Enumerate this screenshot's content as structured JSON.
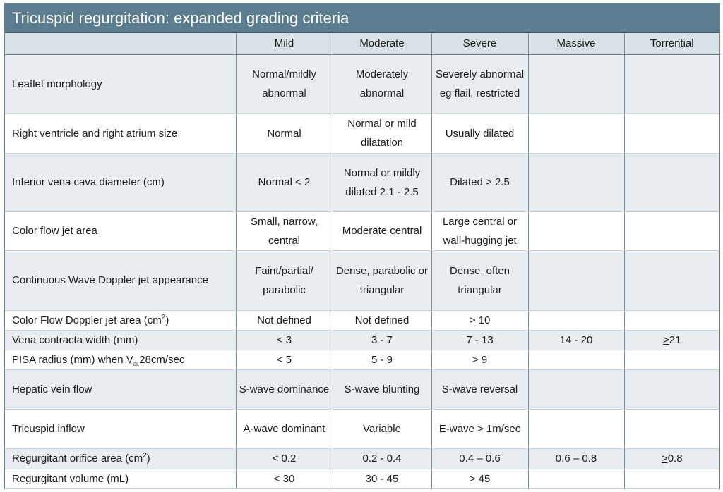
{
  "title": "Tricuspid regurgitation: expanded grading criteria",
  "columns": [
    "",
    "Mild",
    "Moderate",
    "Severe",
    "Massive",
    "Torrential"
  ],
  "rows": {
    "leaflet": {
      "label": "Leaflet morphology",
      "mild": "Normal/mildly abnormal",
      "moderate": "Moderately abnormal",
      "severe": "Severely abnormal eg flail, restricted",
      "massive": "",
      "torrential": ""
    },
    "rv_ra": {
      "label": "Right ventricle and right atrium size",
      "mild": "Normal",
      "moderate": "Normal or mild dilatation",
      "severe": "Usually dilated",
      "massive": "",
      "torrential": ""
    },
    "ivc": {
      "label": "Inferior vena cava diameter (cm)",
      "mild": "Normal < 2",
      "moderate": "Normal or mildly dilated 2.1 - 2.5",
      "severe": "Dilated > 2.5",
      "massive": "",
      "torrential": ""
    },
    "cfja": {
      "label": "Color flow jet area",
      "mild": "Small, narrow, central",
      "moderate": "Moderate central",
      "severe": "Large central or wall-hugging jet",
      "massive": "",
      "torrential": ""
    },
    "cw": {
      "label": "Continuous Wave Doppler jet appearance",
      "mild": "Faint/partial/ parabolic",
      "moderate": "Dense, parabolic or triangular",
      "severe": "Dense, often triangular",
      "massive": "",
      "torrential": ""
    },
    "cfdja": {
      "label_main": "Color Flow Doppler jet area (cm",
      "label_sup": "2",
      "label_end": ")",
      "mild": "Not defined",
      "moderate": "Not defined",
      "severe": "> 10",
      "massive": "",
      "torrential": ""
    },
    "vc": {
      "label": "Vena contracta width (mm)",
      "mild": "< 3",
      "moderate": "3 - 7",
      "severe": "7 - 13",
      "massive": "14 - 20",
      "torrential_under": ">",
      "torrential_rest": "21"
    },
    "pisa": {
      "label_main": "PISA radius (mm) when V",
      "label_sub": "al.",
      "label_end": "28cm/sec",
      "mild": "< 5",
      "moderate": "5 - 9",
      "severe": "> 9",
      "massive": "",
      "torrential": ""
    },
    "hepatic": {
      "label": "Hepatic vein flow",
      "mild": "S-wave dominance",
      "moderate": "S-wave blunting",
      "severe": "S-wave reversal",
      "massive": "",
      "torrential": ""
    },
    "inflow": {
      "label": "Tricuspid inflow",
      "mild": "A-wave dominant",
      "moderate": "Variable",
      "severe": "E-wave > 1m/sec",
      "massive": "",
      "torrential": ""
    },
    "eroa": {
      "label_main": "Regurgitant orifice area (cm",
      "label_sup": "2",
      "label_end": ")",
      "mild": "< 0.2",
      "moderate": "0.2 - 0.4",
      "severe": "0.4 – 0.6",
      "massive": "0.6 – 0.8",
      "torrential_under": ">",
      "torrential_rest": "0.8"
    },
    "rvol": {
      "label": "Regurgitant volume (mL)",
      "mild": "< 30",
      "moderate": "30 - 45",
      "severe": "> 45",
      "massive": "",
      "torrential": ""
    }
  },
  "colors": {
    "title_bg": "#5b7d8f",
    "header_bg": "#d7e1e6",
    "shade_bg": "#e7edf1"
  }
}
